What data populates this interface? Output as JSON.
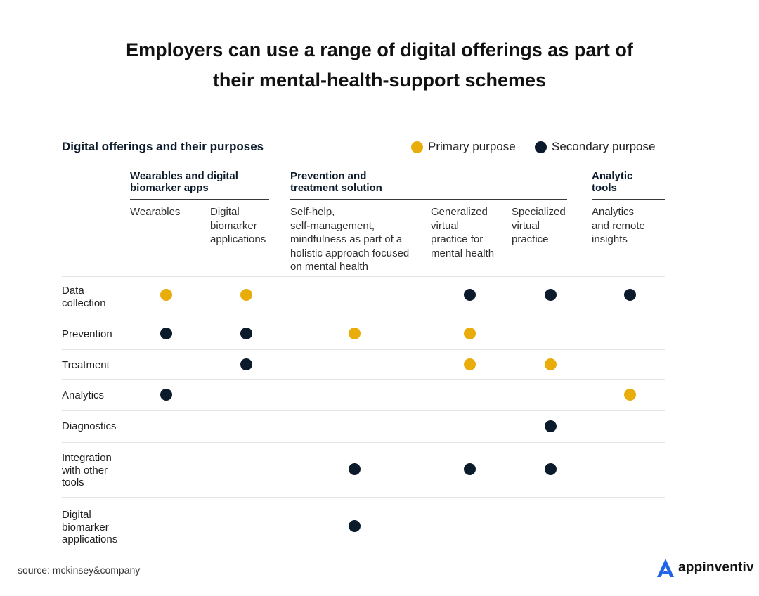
{
  "title_line1": "Employers can use a range of digital offerings as part of",
  "title_line2": "their mental-health-support schemes",
  "subtitle": "Digital offerings and their purposes",
  "legend": {
    "primary": {
      "label": "Primary purpose",
      "color": "#E8AD0B"
    },
    "secondary": {
      "label": "Secondary purpose",
      "color": "#0C1B2B"
    }
  },
  "chart_data": {
    "type": "table",
    "groups": [
      {
        "label_lines": [
          "Wearables and digital",
          "biomarker apps"
        ],
        "columns": [
          0,
          1
        ]
      },
      {
        "label_lines": [
          "Prevention and",
          "treatment solution"
        ],
        "columns": [
          2,
          3,
          4
        ]
      },
      {
        "label_lines": [
          "Analytic",
          "tools"
        ],
        "columns": [
          5
        ]
      }
    ],
    "columns": [
      {
        "lines": [
          "Wearables"
        ]
      },
      {
        "lines": [
          "Digital",
          "biomarker",
          "applications"
        ]
      },
      {
        "lines": [
          "Self-help,",
          "self-management,",
          "mindfulness as part of a",
          "holistic approach focused",
          "on mental health"
        ]
      },
      {
        "lines": [
          "Generalized",
          "virtual",
          "practice for",
          "mental health"
        ]
      },
      {
        "lines": [
          "Specialized",
          "virtual",
          "practice"
        ]
      },
      {
        "lines": [
          "Analytics",
          "and remote",
          "insights"
        ]
      }
    ],
    "rows": [
      {
        "lines": [
          "Data",
          "collection"
        ],
        "values": [
          "primary",
          "primary",
          null,
          "secondary",
          "secondary",
          "secondary"
        ]
      },
      {
        "lines": [
          "Prevention"
        ],
        "values": [
          "secondary",
          "secondary",
          "primary",
          "primary",
          null,
          null
        ]
      },
      {
        "lines": [
          "Treatment"
        ],
        "values": [
          null,
          "secondary",
          null,
          "primary",
          "primary",
          null
        ]
      },
      {
        "lines": [
          "Analytics"
        ],
        "values": [
          "secondary",
          null,
          null,
          null,
          null,
          "primary"
        ]
      },
      {
        "lines": [
          "Diagnostics"
        ],
        "values": [
          null,
          null,
          null,
          null,
          "secondary",
          null
        ]
      },
      {
        "lines": [
          "Integration",
          "with other",
          "tools"
        ],
        "values": [
          null,
          null,
          "secondary",
          "secondary",
          "secondary",
          null
        ]
      },
      {
        "lines": [
          "Digital",
          "biomarker",
          "applications"
        ],
        "values": [
          null,
          null,
          "secondary",
          null,
          null,
          null
        ]
      }
    ]
  },
  "source": "source: mckinsey&company",
  "brand": {
    "name": "appinventiv",
    "icon": "appinventiv-logo-icon",
    "color": "#1E63E9"
  }
}
